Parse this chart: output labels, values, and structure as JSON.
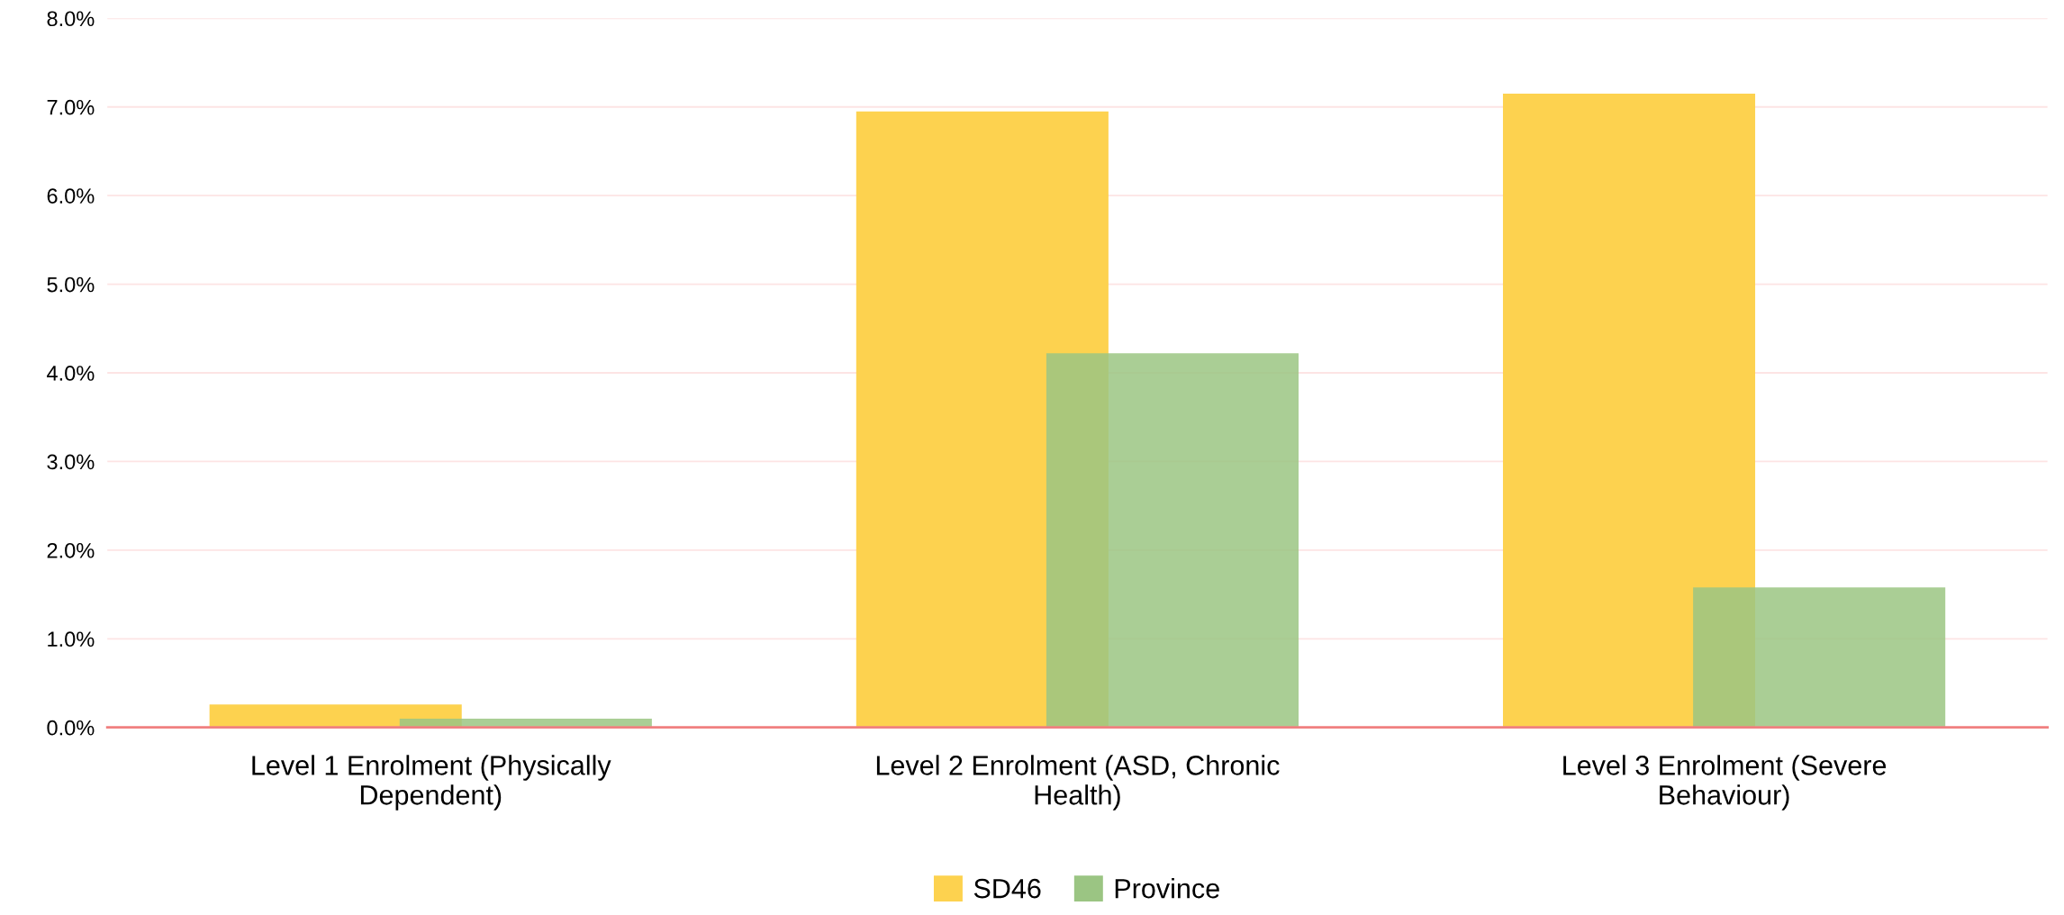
{
  "chart_data": {
    "type": "bar",
    "categories": [
      "Level 1 Enrolment (Physically\nDependent)",
      "Level 2 Enrolment (ASD, Chronic\nHealth)",
      "Level 3 Enrolment (Severe\nBehaviour)"
    ],
    "series": [
      {
        "name": "SD46",
        "color": "#fdd24f",
        "values": [
          0.26,
          6.95,
          7.15
        ]
      },
      {
        "name": "Province",
        "color": "#9bc583",
        "values": [
          0.1,
          4.22,
          1.58
        ]
      }
    ],
    "ylim": [
      0,
      8
    ],
    "yticks": [
      {
        "value": 0,
        "label": "0.0%"
      },
      {
        "value": 1,
        "label": "1.0%"
      },
      {
        "value": 2,
        "label": "2.0%"
      },
      {
        "value": 3,
        "label": "3.0%"
      },
      {
        "value": 4,
        "label": "4.0%"
      },
      {
        "value": 5,
        "label": "5.0%"
      },
      {
        "value": 6,
        "label": "6.0%"
      },
      {
        "value": 7,
        "label": "7.0%"
      },
      {
        "value": 8,
        "label": "8.0%"
      }
    ],
    "grid": "y",
    "legend": "bottom"
  }
}
